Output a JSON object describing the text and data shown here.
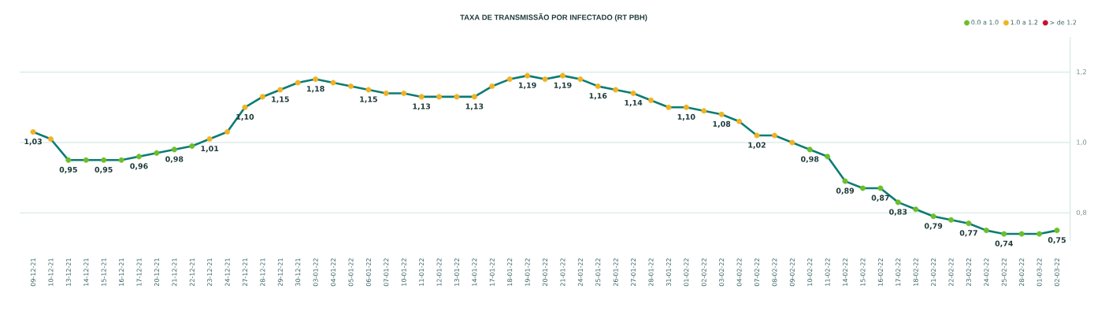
{
  "chart_data": {
    "type": "line",
    "title": "TAXA DE TRANSMISSÃO POR INFECTADO (RT PBH)",
    "categories": [
      "09-12-21",
      "10-12-21",
      "13-12-21",
      "14-12-21",
      "15-12-21",
      "16-12-21",
      "17-12-21",
      "20-12-21",
      "21-12-21",
      "22-12-21",
      "23-12-21",
      "24-12-21",
      "27-12-21",
      "28-12-21",
      "29-12-21",
      "30-12-21",
      "03-01-22",
      "04-01-22",
      "05-01-22",
      "06-01-22",
      "07-01-22",
      "10-01-22",
      "11-01-22",
      "12-01-22",
      "13-01-22",
      "14-01-22",
      "17-01-22",
      "18-01-22",
      "19-01-22",
      "20-01-22",
      "21-01-22",
      "24-01-22",
      "25-01-22",
      "26-01-22",
      "27-01-22",
      "28-01-22",
      "31-01-22",
      "01-02-22",
      "02-02-22",
      "03-02-22",
      "04-02-22",
      "07-02-22",
      "08-02-22",
      "09-02-22",
      "10-02-22",
      "11-02-22",
      "14-02-22",
      "15-02-22",
      "16-02-22",
      "17-02-22",
      "18-02-22",
      "21-02-22",
      "22-02-22",
      "23-02-22",
      "24-02-22",
      "25-02-22",
      "28-02-22",
      "01-03-22",
      "02-03-22"
    ],
    "series": [
      {
        "color": "#0c7c74",
        "marker": "none",
        "values": [
          1.03,
          1.01,
          0.95,
          0.95,
          0.95,
          0.95,
          0.96,
          0.97,
          0.98,
          0.99,
          1.01,
          1.03,
          1.1,
          1.13,
          1.15,
          1.17,
          1.18,
          1.17,
          1.16,
          1.15,
          1.14,
          1.14,
          1.13,
          1.13,
          1.13,
          1.13,
          1.16,
          1.18,
          1.19,
          1.18,
          1.19,
          1.18,
          1.16,
          1.15,
          1.14,
          1.12,
          1.1,
          1.1,
          1.09,
          1.08,
          1.06,
          1.02,
          1.02,
          1.0,
          0.98,
          0.96,
          0.89,
          0.87,
          0.87,
          0.83,
          0.81,
          0.79,
          0.78,
          0.77,
          0.75,
          0.74,
          0.74,
          0.74,
          0.75
        ],
        "value_labels": [
          "1,03",
          null,
          "0,95",
          null,
          "0,95",
          null,
          "0,96",
          null,
          "0,98",
          null,
          "1,01",
          null,
          "1,10",
          null,
          "1,15",
          null,
          "1,18",
          null,
          null,
          "1,15",
          null,
          null,
          "1,13",
          null,
          null,
          "1,13",
          null,
          null,
          "1,19",
          null,
          "1,19",
          null,
          "1,16",
          null,
          "1,14",
          null,
          null,
          "1,10",
          null,
          "1,08",
          null,
          "1,02",
          null,
          null,
          "0,98",
          null,
          "0,89",
          null,
          "0,87",
          "0,83",
          null,
          "0,79",
          null,
          "0,77",
          null,
          "0,74",
          null,
          null,
          "0,75"
        ]
      },
      {
        "type": "scatter",
        "name": "0.0 a 1.0",
        "color": "#6abf2a",
        "marker": "circle",
        "values": [
          null,
          null,
          0.95,
          0.95,
          0.95,
          0.95,
          0.96,
          0.97,
          0.98,
          0.99,
          null,
          null,
          null,
          null,
          null,
          null,
          null,
          null,
          null,
          null,
          null,
          null,
          null,
          null,
          null,
          null,
          null,
          null,
          null,
          null,
          null,
          null,
          null,
          null,
          null,
          null,
          null,
          null,
          null,
          null,
          null,
          null,
          null,
          null,
          0.98,
          0.96,
          0.89,
          0.87,
          0.87,
          0.83,
          0.81,
          0.79,
          0.78,
          0.77,
          0.75,
          0.74,
          0.74,
          0.74,
          0.75
        ]
      },
      {
        "type": "scatter",
        "name": "1.0 a 1.2",
        "color": "#f0b323",
        "marker": "circle",
        "values": [
          1.03,
          1.01,
          null,
          null,
          null,
          null,
          null,
          null,
          null,
          null,
          1.01,
          1.03,
          1.1,
          1.13,
          1.15,
          1.17,
          1.18,
          1.17,
          1.16,
          1.15,
          1.14,
          1.14,
          1.13,
          1.13,
          1.13,
          1.13,
          1.16,
          1.18,
          1.19,
          1.18,
          1.19,
          1.18,
          1.16,
          1.15,
          1.14,
          1.12,
          1.1,
          1.1,
          1.09,
          1.08,
          1.06,
          1.02,
          1.02,
          1.0,
          null,
          null,
          null,
          null,
          null,
          null,
          null,
          null,
          null,
          null,
          null,
          null,
          null,
          null,
          null
        ]
      },
      {
        "type": "scatter",
        "name": "> de 1.2",
        "color": "#c8102e",
        "marker": "circle",
        "values": [
          null,
          null,
          null,
          null,
          null,
          null,
          null,
          null,
          null,
          null,
          null,
          null,
          null,
          null,
          null,
          null,
          null,
          null,
          null,
          null,
          null,
          null,
          null,
          null,
          null,
          null,
          null,
          null,
          null,
          null,
          null,
          null,
          null,
          null,
          null,
          null,
          null,
          null,
          null,
          null,
          null,
          null,
          null,
          null,
          null,
          null,
          null,
          null,
          null,
          null,
          null,
          null,
          null,
          null,
          null,
          null,
          null,
          null,
          null
        ]
      }
    ],
    "ylim": [
      0.72,
      1.3
    ],
    "yticks": [
      {
        "value": 0.8,
        "label": "0,8"
      },
      {
        "value": 1.0,
        "label": "1,0"
      },
      {
        "value": 1.2,
        "label": "1,2"
      }
    ],
    "grid": "y",
    "legend": "top right"
  }
}
